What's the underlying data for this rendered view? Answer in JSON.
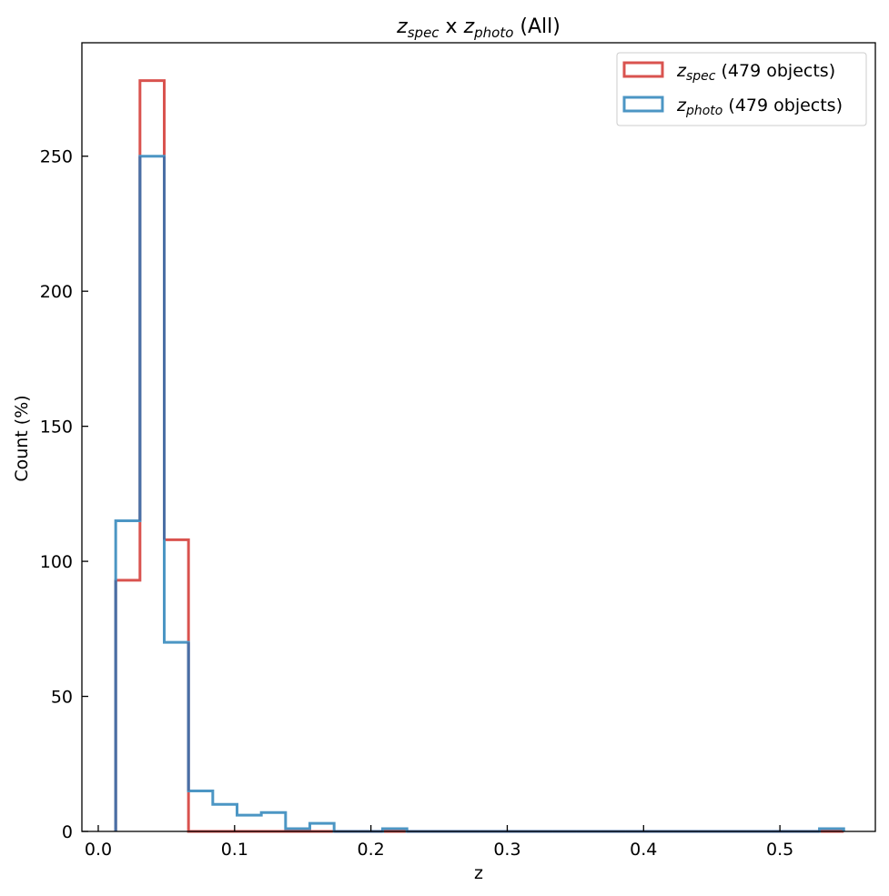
{
  "chart_data": {
    "type": "histogram-step",
    "title": {
      "main_a": "z",
      "sub_a": "spec",
      "middle": " x ",
      "main_b": "z",
      "sub_b": "photo",
      "suffix": " (All)"
    },
    "xlabel": "z",
    "ylabel": "Count (%)",
    "xlim": [
      -0.012,
      0.57
    ],
    "ylim": [
      0,
      292
    ],
    "x_ticks": [
      0.0,
      0.1,
      0.2,
      0.3,
      0.4,
      0.5
    ],
    "x_tick_labels": [
      "0.0",
      "0.1",
      "0.2",
      "0.3",
      "0.4",
      "0.5"
    ],
    "y_ticks": [
      0,
      50,
      100,
      150,
      200,
      250
    ],
    "y_tick_labels": [
      "0",
      "50",
      "100",
      "150",
      "200",
      "250"
    ],
    "bin_edges": [
      0.0128,
      0.0306,
      0.0484,
      0.0662,
      0.084,
      0.1018,
      0.1196,
      0.1374,
      0.1552,
      0.173,
      0.1908,
      0.2086,
      0.2264,
      0.2442,
      0.262,
      0.2798,
      0.2976,
      0.3154,
      0.3332,
      0.351,
      0.3688,
      0.3866,
      0.4044,
      0.4222,
      0.44,
      0.4578,
      0.4756,
      0.4934,
      0.5112,
      0.529,
      0.5468
    ],
    "series": [
      {
        "name_main": "z",
        "name_sub": "spec",
        "name_suffix": " (479 objects)",
        "color": "#d9534f",
        "counts": [
          93,
          278,
          108,
          0,
          0,
          0,
          0,
          0,
          0,
          0,
          0,
          0,
          0,
          0,
          0,
          0,
          0,
          0,
          0,
          0,
          0,
          0,
          0,
          0,
          0,
          0,
          0,
          0,
          0,
          0
        ]
      },
      {
        "name_main": "z",
        "name_sub": "photo",
        "name_suffix": " (479 objects)",
        "color": "#4c96c4",
        "counts": [
          115,
          250,
          70,
          15,
          10,
          6,
          7,
          1,
          3,
          0,
          0,
          1,
          0,
          0,
          0,
          0,
          0,
          0,
          0,
          0,
          0,
          0,
          0,
          0,
          0,
          0,
          0,
          0,
          0,
          1
        ]
      }
    ],
    "overlap_color": "#4a6fa5",
    "legend_position": "upper right",
    "grid": false
  }
}
